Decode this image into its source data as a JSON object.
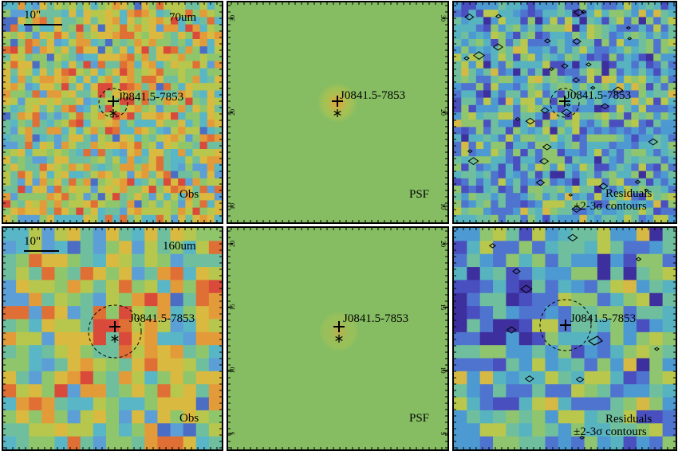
{
  "source_name": "J0841.5-7853",
  "scale_bar_label": "10\"",
  "rows": [
    {
      "band": "70um",
      "obs_label": "Obs",
      "psf_label": "PSF",
      "residual_label_1": "Residuals",
      "residual_label_2": "±2-3σ contours",
      "psf_ticks": [
        "30",
        "20",
        "10"
      ]
    },
    {
      "band": "160um",
      "obs_label": "Obs",
      "psf_label": "PSF",
      "residual_label_1": "Residuals",
      "residual_label_2": "±2-3σ contours",
      "psf_ticks": [
        "20",
        "15",
        "10",
        "5"
      ]
    }
  ],
  "colors": {
    "psf_background": "#86bd63",
    "psf_core": "#e8a13a",
    "frame": "#000000"
  }
}
